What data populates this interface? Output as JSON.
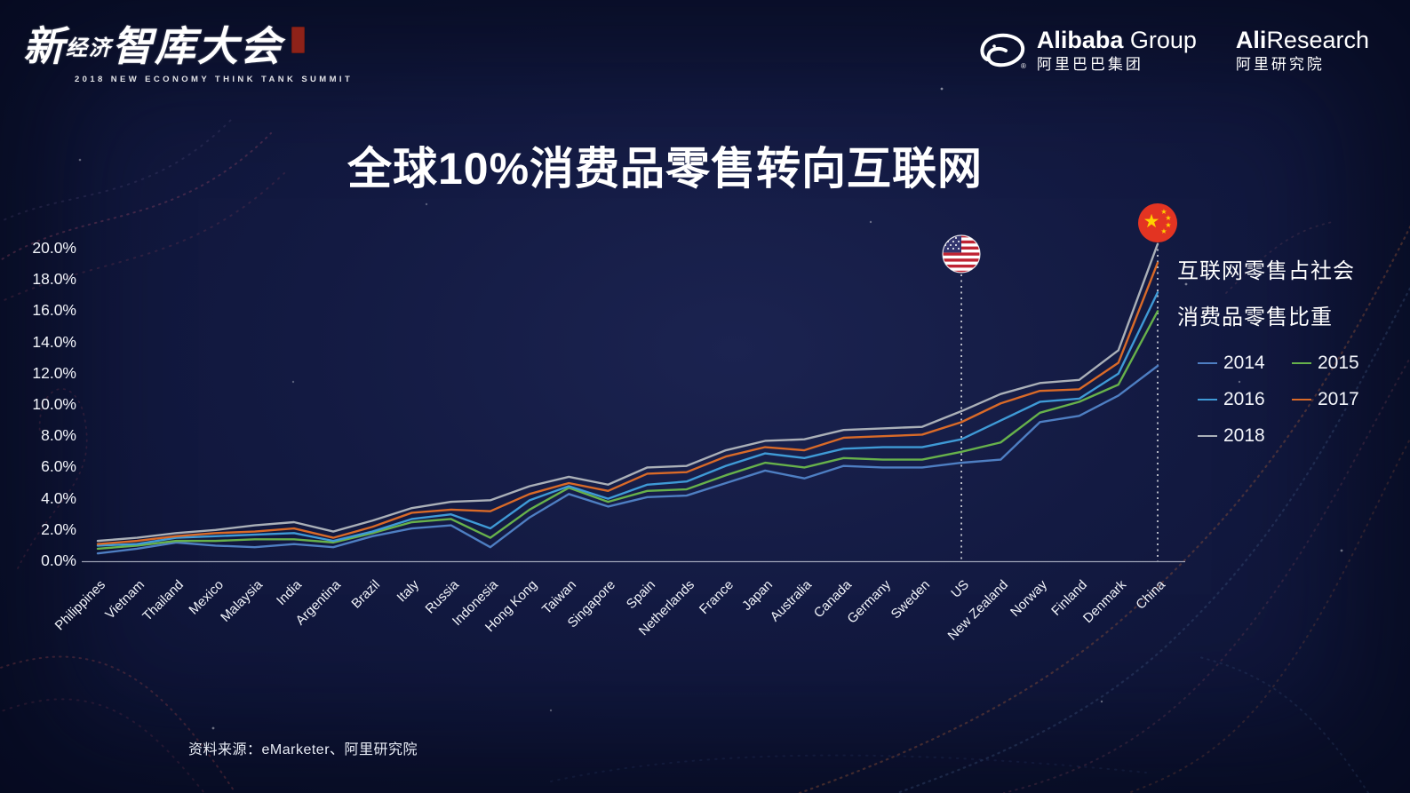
{
  "header": {
    "event_logo": {
      "zh_part1": "新",
      "zh_part2": "经济",
      "zh_part3": "智库大会",
      "subtitle": "2018 NEW ECONOMY THINK TANK SUMMIT"
    },
    "alibaba": {
      "latin_bold": "Alibaba",
      "latin_light": "Group",
      "zh": "阿里巴巴集团"
    },
    "aliresearch": {
      "latin_bold": "Ali",
      "latin_light": "Research",
      "zh": "阿里研究院"
    }
  },
  "title": "全球10%消费品零售转向互联网",
  "chart_data": {
    "type": "line",
    "title": "全球10%消费品零售转向互联网",
    "categories": [
      "Philippines",
      "Vietnam",
      "Thailand",
      "Mexico",
      "Malaysia",
      "India",
      "Argentina",
      "Brazil",
      "Italy",
      "Russia",
      "Indonesia",
      "Hong Kong",
      "Taiwan",
      "Singapore",
      "Spain",
      "Netherlands",
      "France",
      "Japan",
      "Australia",
      "Canada",
      "Germany",
      "Sweden",
      "US",
      "New Zealand",
      "Norway",
      "Finland",
      "Denmark",
      "China"
    ],
    "series": [
      {
        "name": "2014",
        "color": "#4e7ec2",
        "values": [
          0.5,
          0.8,
          1.2,
          1.0,
          0.9,
          1.1,
          0.9,
          1.6,
          2.1,
          2.3,
          0.9,
          2.8,
          4.3,
          3.5,
          4.1,
          4.2,
          5.0,
          5.8,
          5.3,
          6.1,
          6.0,
          6.0,
          6.3,
          6.5,
          8.9,
          9.3,
          10.6,
          12.5
        ]
      },
      {
        "name": "2015",
        "color": "#67b14b",
        "values": [
          0.8,
          1.0,
          1.3,
          1.3,
          1.4,
          1.4,
          1.2,
          1.8,
          2.5,
          2.7,
          1.5,
          3.3,
          4.7,
          3.8,
          4.5,
          4.6,
          5.5,
          6.3,
          6.0,
          6.6,
          6.5,
          6.5,
          7.0,
          7.6,
          9.5,
          10.2,
          11.3,
          16.0
        ]
      },
      {
        "name": "2016",
        "color": "#3f9ad6",
        "values": [
          1.0,
          1.1,
          1.5,
          1.6,
          1.7,
          1.8,
          1.3,
          1.9,
          2.7,
          3.0,
          2.1,
          3.9,
          4.8,
          4.0,
          4.9,
          5.1,
          6.1,
          6.9,
          6.6,
          7.2,
          7.3,
          7.3,
          7.8,
          9.0,
          10.2,
          10.4,
          12.0,
          17.2
        ]
      },
      {
        "name": "2017",
        "color": "#d96a28",
        "values": [
          1.1,
          1.3,
          1.6,
          1.8,
          1.9,
          2.1,
          1.5,
          2.2,
          3.1,
          3.3,
          3.2,
          4.3,
          5.0,
          4.5,
          5.6,
          5.7,
          6.7,
          7.3,
          7.1,
          7.9,
          8.0,
          8.1,
          8.9,
          10.1,
          10.9,
          11.0,
          12.7,
          19.1
        ]
      },
      {
        "name": "2018",
        "color": "#aab0b8",
        "values": [
          1.3,
          1.5,
          1.8,
          2.0,
          2.3,
          2.5,
          1.9,
          2.6,
          3.4,
          3.8,
          3.9,
          4.8,
          5.4,
          4.9,
          6.0,
          6.1,
          7.1,
          7.7,
          7.8,
          8.4,
          8.5,
          8.6,
          9.6,
          10.7,
          11.4,
          11.6,
          13.5,
          20.3
        ]
      }
    ],
    "ylim": [
      0,
      20
    ],
    "ytick_step": 2,
    "yticks": [
      "0.0%",
      "2.0%",
      "4.0%",
      "6.0%",
      "8.0%",
      "10.0%",
      "12.0%",
      "14.0%",
      "16.0%",
      "18.0%",
      "20.0%"
    ],
    "grid": false,
    "legend_title_lines": [
      "互联网零售占社会",
      "消费品零售比重"
    ],
    "legend_entries": [
      "2014",
      "2015",
      "2016",
      "2017",
      "2018"
    ],
    "legend_position": "right",
    "annotations": [
      {
        "category": "US",
        "marker": "us-flag"
      },
      {
        "category": "China",
        "marker": "china-flag"
      }
    ]
  },
  "source": "资料来源：eMarketer、阿里研究院"
}
